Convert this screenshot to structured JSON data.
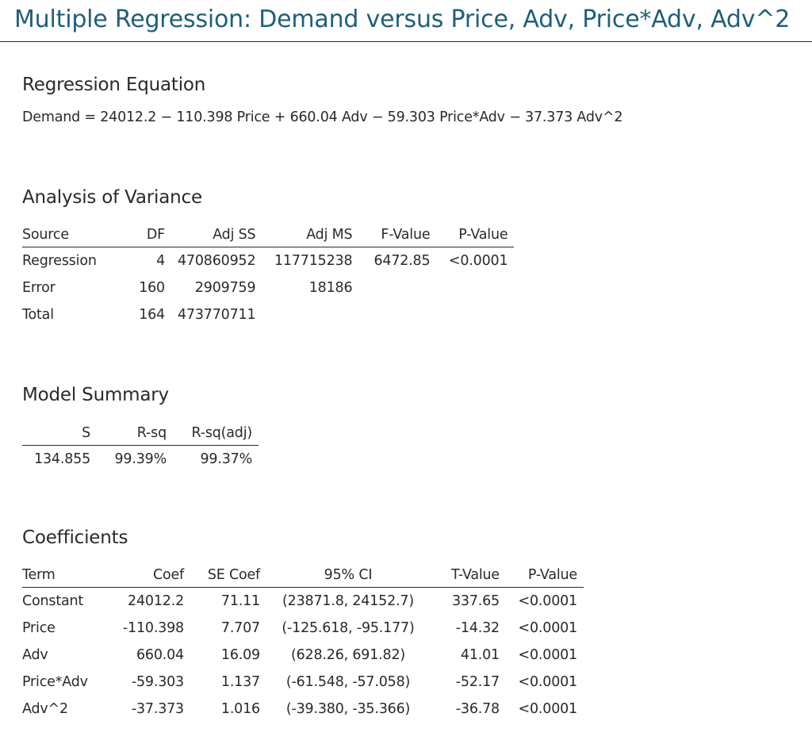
{
  "title": "Multiple Regression: Demand versus Price, Adv, Price*Adv, Adv^2",
  "regression_equation": {
    "heading": "Regression Equation",
    "equation": "Demand = 24012.2 − 110.398 Price + 660.04 Adv − 59.303 Price*Adv − 37.373 Adv^2"
  },
  "anova": {
    "heading": "Analysis of Variance",
    "columns": [
      "Source",
      "DF",
      "Adj SS",
      "Adj MS",
      "F-Value",
      "P-Value"
    ],
    "rows": [
      [
        "Regression",
        "4",
        "470860952",
        "117715238",
        "6472.85",
        "<0.0001"
      ],
      [
        "Error",
        "160",
        "2909759",
        "18186",
        "",
        ""
      ],
      [
        "Total",
        "164",
        "473770711",
        "",
        "",
        ""
      ]
    ]
  },
  "model_summary": {
    "heading": "Model Summary",
    "columns": [
      "S",
      "R-sq",
      "R-sq(adj)"
    ],
    "rows": [
      [
        "134.855",
        "99.39%",
        "99.37%"
      ]
    ]
  },
  "coefficients": {
    "heading": "Coefficients",
    "columns": [
      "Term",
      "Coef",
      "SE Coef",
      "95% CI",
      "T-Value",
      "P-Value"
    ],
    "rows": [
      [
        "Constant",
        "24012.2",
        "71.11",
        "(23871.8, 24152.7)",
        "337.65",
        "<0.0001"
      ],
      [
        "Price",
        "-110.398",
        "7.707",
        "(-125.618, -95.177)",
        "-14.32",
        "<0.0001"
      ],
      [
        "Adv",
        "660.04",
        "16.09",
        "(628.26, 691.82)",
        "41.01",
        "<0.0001"
      ],
      [
        "Price*Adv",
        "-59.303",
        "1.137",
        "(-61.548, -57.058)",
        "-52.17",
        "<0.0001"
      ],
      [
        "Adv^2",
        "-37.373",
        "1.016",
        "(-39.380, -35.366)",
        "-36.78",
        "<0.0001"
      ]
    ]
  }
}
